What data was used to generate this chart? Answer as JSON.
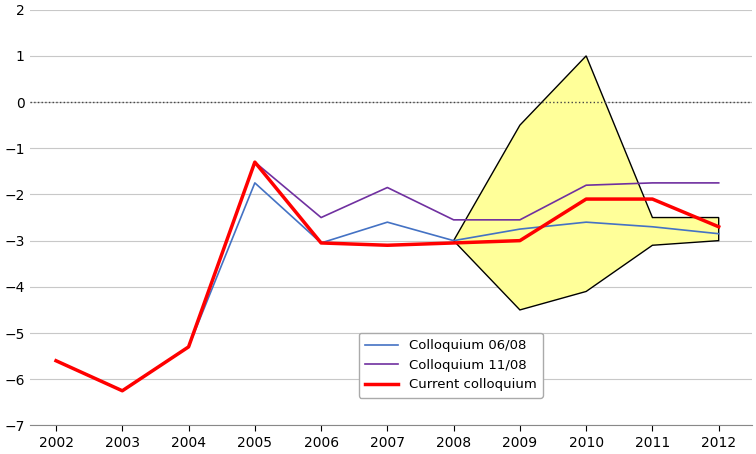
{
  "colloquium_0608": {
    "x": [
      2002,
      2003,
      2004,
      2005,
      2006,
      2007,
      2008,
      2009,
      2010,
      2011,
      2012
    ],
    "y": [
      -5.6,
      -6.25,
      -5.3,
      -1.75,
      -3.05,
      -2.6,
      -3.0,
      -2.75,
      -2.6,
      -2.7,
      -2.85
    ]
  },
  "colloquium_1108": {
    "x": [
      2002,
      2003,
      2004,
      2005,
      2006,
      2007,
      2008,
      2009,
      2010,
      2011,
      2012
    ],
    "y": [
      -5.6,
      -6.25,
      -5.3,
      -1.3,
      -2.5,
      -1.85,
      -2.55,
      -2.55,
      -1.8,
      -1.75,
      -1.75
    ]
  },
  "current_colloquium": {
    "x": [
      2002,
      2003,
      2004,
      2005,
      2006,
      2007,
      2008,
      2009,
      2010,
      2011,
      2012
    ],
    "y": [
      -5.6,
      -6.25,
      -5.3,
      -1.3,
      -3.05,
      -3.1,
      -3.05,
      -3.0,
      -2.1,
      -2.1,
      -2.7
    ]
  },
  "shaded_upper_x": [
    2008,
    2009,
    2010,
    2011,
    2012
  ],
  "shaded_upper_y": [
    -3.0,
    -0.5,
    1.0,
    -2.5,
    -2.5
  ],
  "shaded_lower_x": [
    2008,
    2009,
    2010,
    2011,
    2012
  ],
  "shaded_lower_y": [
    -3.0,
    -4.5,
    -4.1,
    -3.1,
    -3.0
  ],
  "color_0608": "#4472c4",
  "color_1108": "#7030a0",
  "color_current": "#ff0000",
  "color_shade": "#ffff99",
  "color_shade_edge": "#000000",
  "ylim": [
    -7,
    2
  ],
  "xlim": [
    2001.6,
    2012.5
  ],
  "yticks": [
    -7,
    -6,
    -5,
    -4,
    -3,
    -2,
    -1,
    0,
    1,
    2
  ],
  "xticks": [
    2002,
    2003,
    2004,
    2005,
    2006,
    2007,
    2008,
    2009,
    2010,
    2011,
    2012
  ],
  "legend_labels": [
    "Colloquium 06/08",
    "Colloquium 11/08",
    "Current colloquium"
  ],
  "background_color": "#ffffff",
  "grid_color": "#c8c8c8"
}
